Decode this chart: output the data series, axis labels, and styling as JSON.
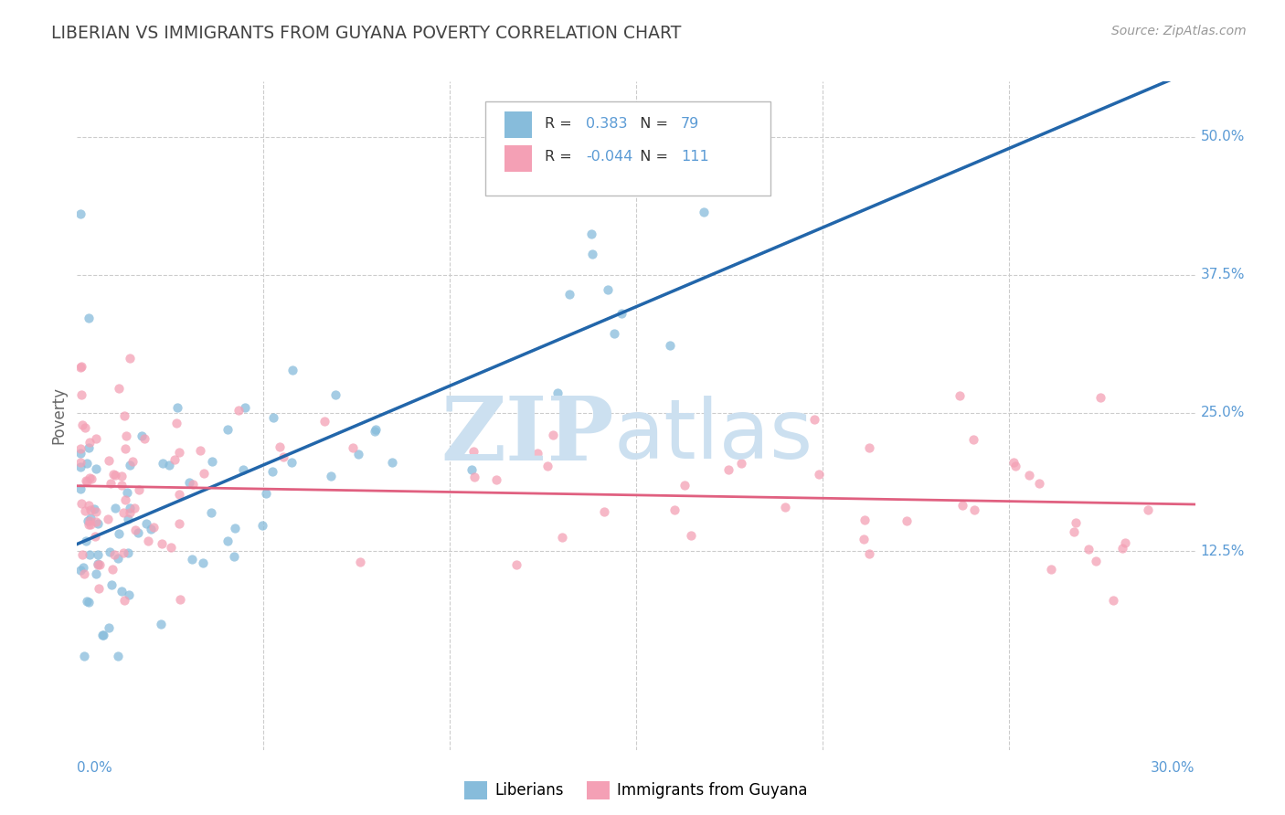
{
  "title": "LIBERIAN VS IMMIGRANTS FROM GUYANA POVERTY CORRELATION CHART",
  "source": "Source: ZipAtlas.com",
  "ylabel": "Poverty",
  "ytick_labels": [
    "50.0%",
    "37.5%",
    "25.0%",
    "12.5%"
  ],
  "ytick_values": [
    0.5,
    0.375,
    0.25,
    0.125
  ],
  "xlim": [
    0.0,
    0.3
  ],
  "ylim": [
    -0.055,
    0.55
  ],
  "legend1_label": "Liberians",
  "legend2_label": "Immigrants from Guyana",
  "R_liberian": "0.383",
  "N_liberian": "79",
  "R_guyana": "-0.044",
  "N_guyana": "111",
  "blue_color": "#87bcdb",
  "pink_color": "#f4a0b5",
  "trend_blue": "#2266aa",
  "trend_pink": "#e06080",
  "trend_dashed_color": "#aaccee",
  "watermark_color": "#cce0f0",
  "background_color": "#ffffff",
  "grid_color": "#cccccc",
  "title_color": "#444444",
  "axis_label_color": "#5b9bd5",
  "scatter_alpha": 0.75,
  "scatter_size": 55,
  "seed": 42
}
